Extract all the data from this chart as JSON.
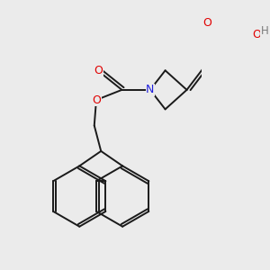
{
  "bg_color": "#ebebeb",
  "bond_color": "#1a1a1a",
  "atom_colors": {
    "O": "#e00000",
    "N": "#2020dd",
    "H": "#7a7a7a",
    "C": "#1a1a1a"
  },
  "figsize": [
    3.0,
    3.0
  ],
  "dpi": 100,
  "lw": 1.4,
  "fs": 8.5
}
